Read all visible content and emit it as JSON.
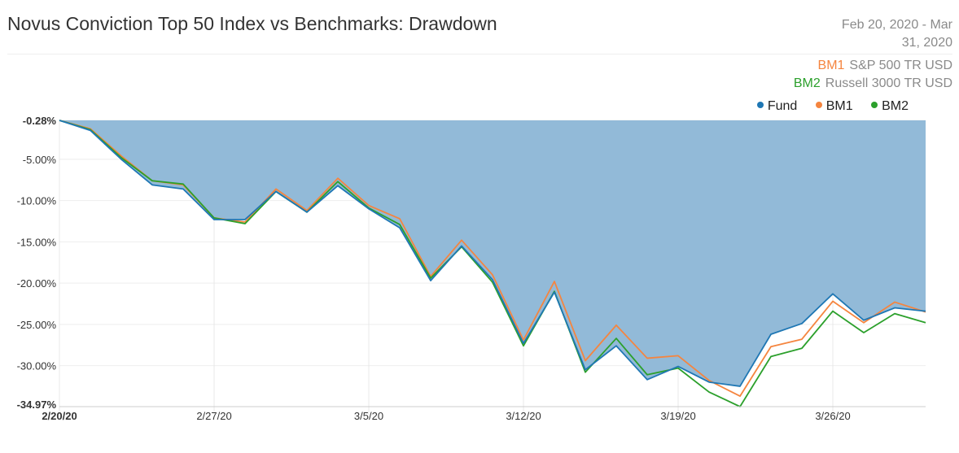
{
  "header": {
    "title": "Novus Conviction Top 50 Index vs Benchmarks: Drawdown",
    "date_range_line1": "Feb 20, 2020 - Mar",
    "date_range_line2": "31, 2020"
  },
  "benchmarks": [
    {
      "code": "BM1",
      "name": "S&P 500 TR USD",
      "color": "#f5853f"
    },
    {
      "code": "BM2",
      "name": "Russell 3000 TR USD",
      "color": "#2ca02c"
    }
  ],
  "legend": [
    {
      "label": "Fund",
      "color": "#1f77b4"
    },
    {
      "label": "BM1",
      "color": "#f5853f"
    },
    {
      "label": "BM2",
      "color": "#2ca02c"
    }
  ],
  "chart_data": {
    "type": "area",
    "title": "Novus Conviction Top 50 Index vs Benchmarks: Drawdown",
    "xlabel": "",
    "ylabel": "",
    "ylim": [
      -34.97,
      -0.28
    ],
    "y_ticks": [
      "-0.28%",
      "-5.00%",
      "-10.00%",
      "-15.00%",
      "-20.00%",
      "-25.00%",
      "-30.00%",
      "-34.97%"
    ],
    "y_tick_values": [
      -0.28,
      -5,
      -10,
      -15,
      -20,
      -25,
      -30,
      -34.97
    ],
    "x_ticks": [
      "2/20/20",
      "2/27/20",
      "3/5/20",
      "3/12/20",
      "3/19/20",
      "3/26/20"
    ],
    "x_tick_index": [
      0,
      5,
      10,
      15,
      20,
      25
    ],
    "x": [
      "2/20/20",
      "2/21/20",
      "2/24/20",
      "2/25/20",
      "2/26/20",
      "2/27/20",
      "2/28/20",
      "3/2/20",
      "3/3/20",
      "3/4/20",
      "3/5/20",
      "3/6/20",
      "3/9/20",
      "3/10/20",
      "3/11/20",
      "3/12/20",
      "3/13/20",
      "3/16/20",
      "3/17/20",
      "3/18/20",
      "3/19/20",
      "3/20/20",
      "3/23/20",
      "3/24/20",
      "3/25/20",
      "3/26/20",
      "3/27/20",
      "3/30/20",
      "3/31/20"
    ],
    "grid": true,
    "legend_position": "top-right",
    "series": [
      {
        "name": "Fund",
        "color": "#1f77b4",
        "fill": "#92bad8",
        "values": [
          -0.28,
          -1.5,
          -5.0,
          -8.1,
          -8.6,
          -12.3,
          -12.3,
          -8.9,
          -11.4,
          -8.2,
          -11.0,
          -13.3,
          -19.7,
          -15.5,
          -19.6,
          -27.3,
          -21.1,
          -30.5,
          -27.6,
          -31.7,
          -30.1,
          -32.0,
          -32.5,
          -26.2,
          -24.9,
          -21.3,
          -24.5,
          -23.0,
          -23.4
        ]
      },
      {
        "name": "BM1",
        "color": "#f5853f",
        "values": [
          -0.28,
          -1.3,
          -4.6,
          -7.6,
          -8.1,
          -12.1,
          -12.6,
          -8.6,
          -11.2,
          -7.3,
          -10.6,
          -12.2,
          -19.2,
          -14.8,
          -19.0,
          -26.9,
          -19.8,
          -29.4,
          -25.1,
          -29.1,
          -28.8,
          -31.8,
          -33.7,
          -27.7,
          -26.8,
          -22.2,
          -24.8,
          -22.3,
          -23.5
        ]
      },
      {
        "name": "BM2",
        "color": "#2ca02c",
        "values": [
          -0.28,
          -1.4,
          -4.8,
          -7.6,
          -8.0,
          -12.1,
          -12.8,
          -8.9,
          -11.4,
          -7.7,
          -10.9,
          -12.9,
          -19.4,
          -15.6,
          -19.9,
          -27.6,
          -21.0,
          -30.8,
          -26.7,
          -31.1,
          -30.3,
          -33.2,
          -34.97,
          -28.9,
          -27.9,
          -23.4,
          -26.0,
          -23.7,
          -24.8
        ]
      }
    ]
  }
}
